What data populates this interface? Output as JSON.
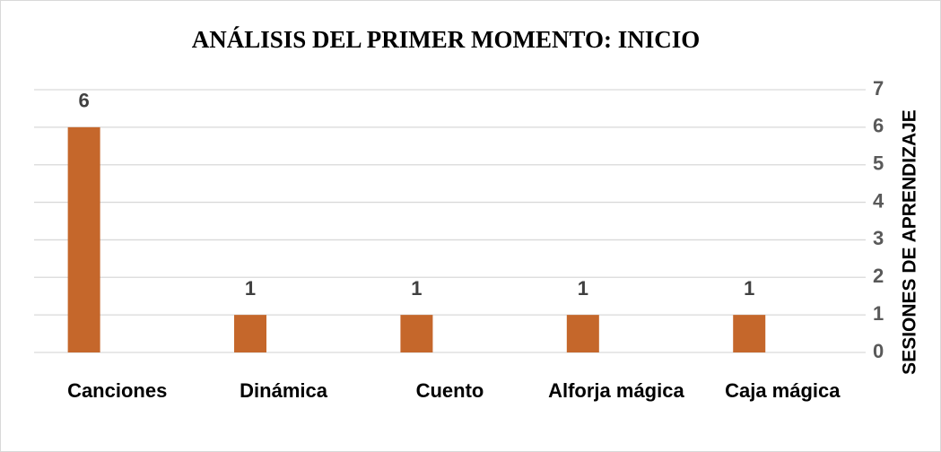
{
  "chart_data": {
    "type": "bar",
    "title": "ANÁLISIS DEL PRIMER MOMENTO: INICIO",
    "y_axis_label": "SESIONES DE APRENDIZAJE",
    "categories": [
      "Canciones",
      "Dinámica",
      "Cuento",
      "Alforja mágica",
      "Caja mágica"
    ],
    "values": [
      6,
      1,
      1,
      1,
      1
    ],
    "color": "#c5672b",
    "ylim": [
      0,
      7
    ],
    "yticks": [
      0,
      1,
      2,
      3,
      4,
      5,
      6,
      7
    ],
    "grid": true,
    "y_axis_side": "right"
  }
}
